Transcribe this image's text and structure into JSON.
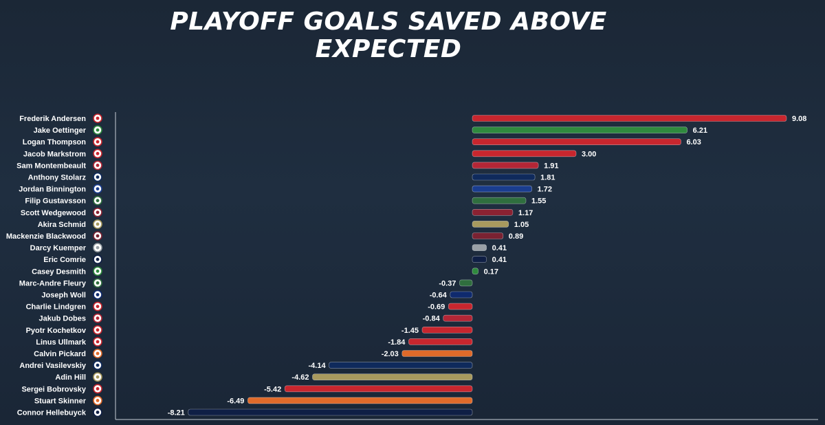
{
  "title": "PLAYOFF GOALS SAVED ABOVE EXPECTED",
  "chart_data": {
    "type": "bar",
    "orientation": "horizontal",
    "title": "PLAYOFF GOALS SAVED ABOVE EXPECTED",
    "xlabel": "",
    "ylabel": "",
    "xlim": [
      -8.21,
      9.08
    ],
    "grid": false,
    "categories": [
      "Frederik Andersen",
      "Jake Oettinger",
      "Logan Thompson",
      "Jacob Markstrom",
      "Sam Montembeault",
      "Anthony Stolarz",
      "Jordan Binnington",
      "Filip Gustavsson",
      "Scott Wedgewood",
      "Akira Schmid",
      "Mackenzie Blackwood",
      "Darcy Kuemper",
      "Eric Comrie",
      "Casey Desmith",
      "Marc-Andre Fleury",
      "Joseph Woll",
      "Charlie Lindgren",
      "Jakub Dobes",
      "Pyotr Kochetkov",
      "Linus Ullmark",
      "Calvin Pickard",
      "Andrei Vasilevskiy",
      "Adin Hill",
      "Sergei Bobrovsky",
      "Stuart Skinner",
      "Connor Hellebuyck"
    ],
    "values": [
      9.08,
      6.21,
      6.03,
      3.0,
      1.91,
      1.81,
      1.72,
      1.55,
      1.17,
      1.05,
      0.89,
      0.41,
      0.41,
      0.17,
      -0.37,
      -0.64,
      -0.69,
      -0.84,
      -1.45,
      -1.84,
      -2.03,
      -4.14,
      -4.62,
      -5.42,
      -6.49,
      -8.21
    ],
    "value_labels": [
      "9.08",
      "6.21",
      "6.03",
      "3.00",
      "1.91",
      "1.81",
      "1.72",
      "1.55",
      "1.17",
      "1.05",
      "0.89",
      "0.41",
      "0.41",
      "0.17",
      "-0.37",
      "-0.64",
      "-0.69",
      "-0.84",
      "-1.45",
      "-1.84",
      "-2.03",
      "-4.14",
      "-4.62",
      "-5.42",
      "-6.49",
      "-8.21"
    ],
    "bar_colors": [
      "#c8262e",
      "#2f8a3e",
      "#c8262e",
      "#c8262e",
      "#b32636",
      "#0f2a5c",
      "#1a3d8f",
      "#2f6e3e",
      "#8a2232",
      "#a89a5e",
      "#7a2232",
      "#9aa0a6",
      "#0f1f45",
      "#2f8a3e",
      "#2f6e3e",
      "#0f2a6e",
      "#c8262e",
      "#b32636",
      "#c8262e",
      "#c8262e",
      "#e06a2a",
      "#0f2a5c",
      "#a89a5e",
      "#c8262e",
      "#e06a2a",
      "#0f1f45"
    ],
    "team_icons": [
      "hurricanes-logo",
      "stars-logo",
      "capitals-logo",
      "devils-logo",
      "canadiens-logo",
      "maple-leafs-logo",
      "blues-logo",
      "wild-logo",
      "avalanche-logo",
      "golden-knights-logo",
      "avalanche-logo",
      "kings-logo",
      "jets-logo",
      "stars-logo",
      "wild-logo",
      "maple-leafs-logo",
      "capitals-logo",
      "canadiens-logo",
      "hurricanes-logo",
      "senators-logo",
      "oilers-logo",
      "lightning-logo",
      "golden-knights-logo",
      "panthers-logo",
      "oilers-logo",
      "jets-logo"
    ]
  }
}
